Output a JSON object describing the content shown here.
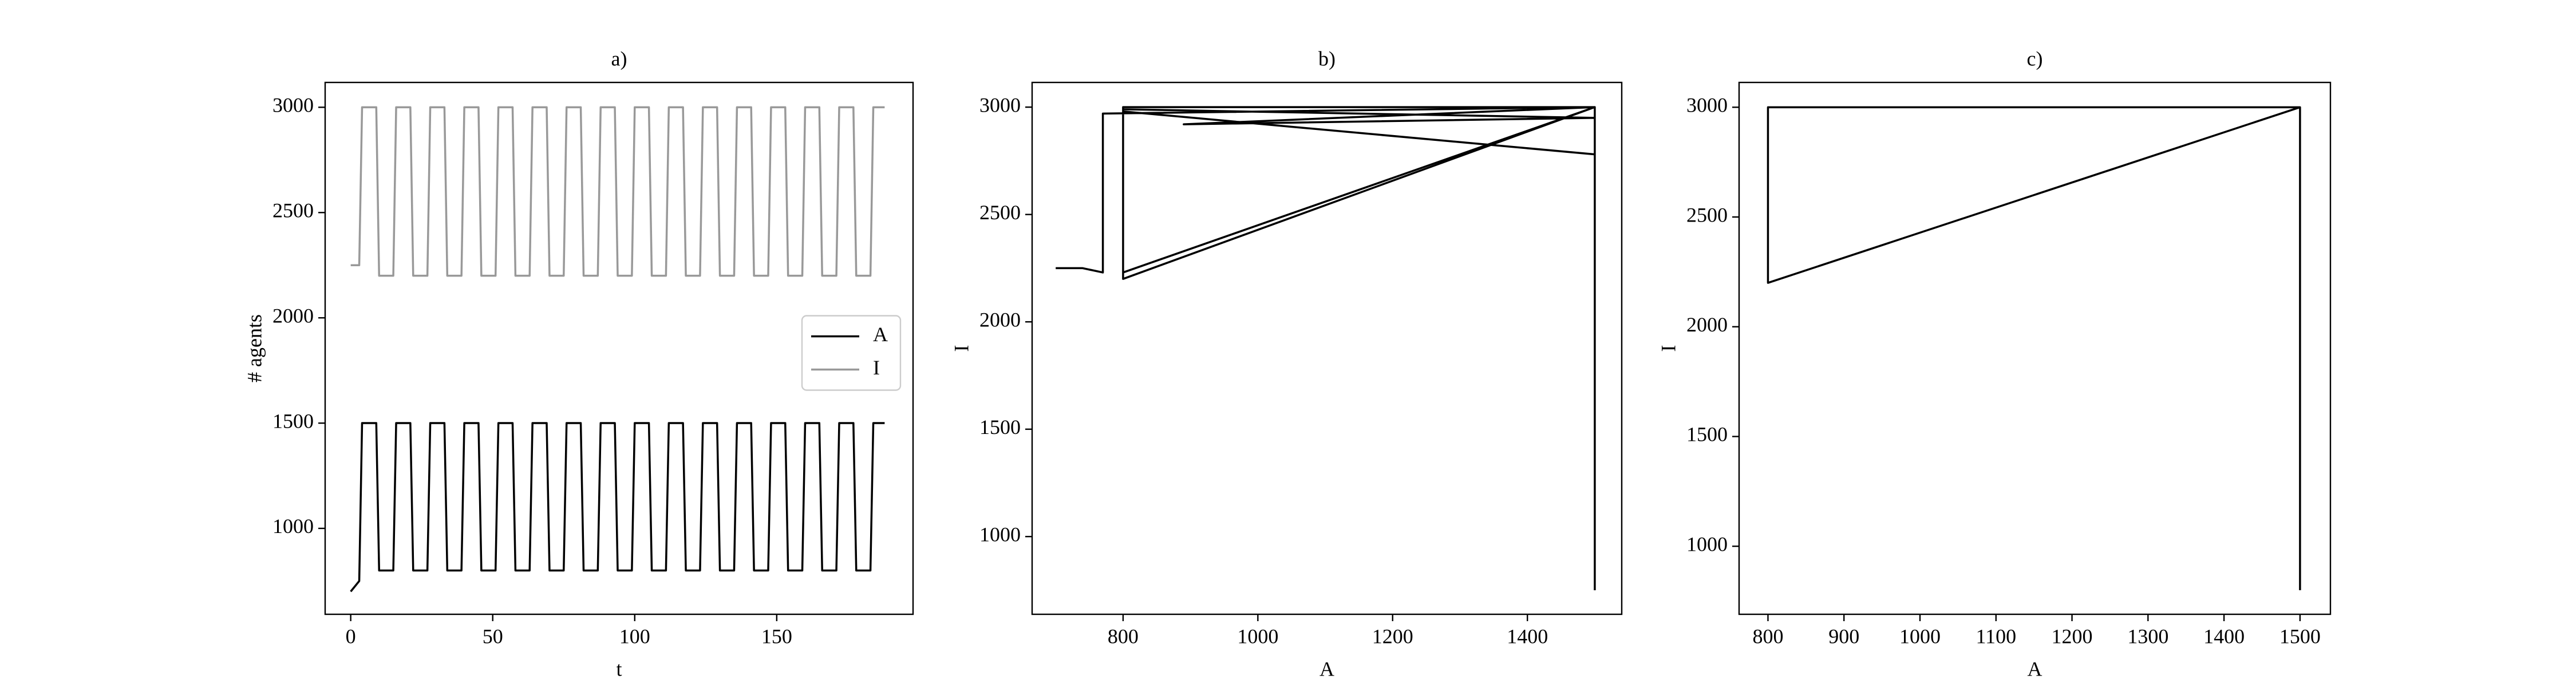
{
  "chart_data": [
    {
      "type": "line",
      "title": "a)",
      "x_label": "t",
      "y_label": "# agents",
      "x": [
        0,
        3,
        4,
        9,
        10,
        15,
        16,
        21,
        22,
        27,
        28,
        33,
        34,
        39,
        40,
        45,
        46,
        51,
        52,
        57,
        58,
        63,
        64,
        69,
        70,
        75,
        76,
        81,
        82,
        87,
        88,
        93,
        94,
        99,
        100,
        105,
        106,
        111,
        112,
        117,
        118,
        123,
        124,
        129,
        130,
        135,
        136,
        141,
        142,
        147,
        148,
        153,
        154,
        159,
        160,
        165,
        166,
        171,
        172,
        177,
        178,
        183,
        184,
        188
      ],
      "series": [
        {
          "name": "A",
          "color": "#000000",
          "values": [
            700,
            750,
            1500,
            1500,
            800,
            800,
            1500,
            1500,
            800,
            800,
            1500,
            1500,
            800,
            800,
            1500,
            1500,
            800,
            800,
            1500,
            1500,
            800,
            800,
            1500,
            1500,
            800,
            800,
            1500,
            1500,
            800,
            800,
            1500,
            1500,
            800,
            800,
            1500,
            1500,
            800,
            800,
            1500,
            1500,
            800,
            800,
            1500,
            1500,
            800,
            800,
            1500,
            1500,
            800,
            800,
            1500,
            1500,
            800,
            800,
            1500,
            1500,
            800,
            800,
            1500,
            1500,
            800,
            800,
            1500,
            1500
          ]
        },
        {
          "name": "I",
          "color": "#999999",
          "values": [
            2250,
            2250,
            3000,
            3000,
            2200,
            2200,
            3000,
            3000,
            2200,
            2200,
            3000,
            3000,
            2200,
            2200,
            3000,
            3000,
            2200,
            2200,
            3000,
            3000,
            2200,
            2200,
            3000,
            3000,
            2200,
            2200,
            3000,
            3000,
            2200,
            2200,
            3000,
            3000,
            2200,
            2200,
            3000,
            3000,
            2200,
            2200,
            3000,
            3000,
            2200,
            2200,
            3000,
            3000,
            2200,
            2200,
            3000,
            3000,
            2200,
            2200,
            3000,
            3000,
            2200,
            2200,
            3000,
            3000,
            2200,
            2200,
            3000,
            3000,
            2200,
            2200,
            3000,
            3000
          ]
        }
      ],
      "xlim": [
        -9,
        198
      ],
      "xticks": [
        0,
        50,
        100,
        150
      ],
      "ylim": [
        592,
        3118
      ],
      "yticks": [
        1000,
        1500,
        2000,
        2500,
        3000
      ],
      "legend": "center right"
    },
    {
      "type": "line",
      "title": "b)",
      "x_label": "A",
      "y_label": "I",
      "color": "#000000",
      "x": [
        700,
        740,
        770,
        770,
        1500,
        1500,
        800,
        800,
        1500,
        890,
        1500,
        800,
        800,
        1500,
        800,
        800,
        1500,
        1500
      ],
      "values": [
        2250,
        2250,
        2230,
        2970,
        3000,
        2780,
        2980,
        2230,
        3000,
        2920,
        2950,
        2990,
        2200,
        3000,
        3000,
        2200,
        3000,
        750
      ],
      "xlim": [
        665,
        1540
      ],
      "xticks": [
        800,
        1000,
        1200,
        1400
      ],
      "ylim": [
        638,
        3115
      ],
      "yticks": [
        1000,
        1500,
        2000,
        2500,
        3000
      ]
    },
    {
      "type": "line",
      "title": "c)",
      "x_label": "A",
      "y_label": "I",
      "color": "#000000",
      "x": [
        1500,
        1500,
        800,
        800,
        1500
      ],
      "values": [
        800,
        3000,
        3000,
        2200,
        3000
      ],
      "xlim": [
        762,
        1540
      ],
      "xticks": [
        800,
        900,
        1000,
        1100,
        1200,
        1300,
        1400,
        1500
      ],
      "ylim": [
        690,
        3113
      ],
      "yticks": [
        1000,
        1500,
        2000,
        2500,
        3000
      ]
    }
  ]
}
